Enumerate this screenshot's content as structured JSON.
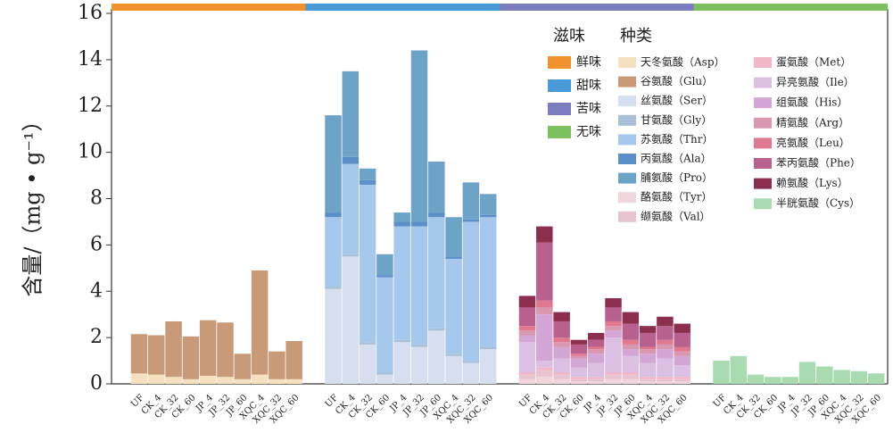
{
  "chart_data": {
    "type": "bar",
    "stacked": true,
    "ylabel": "含量/（mg • g⁻¹）",
    "ylim": [
      0,
      16
    ],
    "yticks": [
      0,
      2,
      4,
      6,
      8,
      10,
      12,
      14,
      16
    ],
    "categories": [
      "UF",
      "CK_4",
      "CK_32",
      "CK_60",
      "JP_4",
      "JP_32",
      "JP_60",
      "XQC_4",
      "XQC_32",
      "XQC_60"
    ],
    "legend_titles": [
      "滋味",
      "种类"
    ],
    "groups": [
      {
        "name": "鲜味",
        "color": "#f0922e",
        "series": [
          {
            "name": "天冬氨酸（Asp）",
            "color": "#f5e0c0",
            "values": [
              0.45,
              0.4,
              0.3,
              0.2,
              0.35,
              0.3,
              0.2,
              0.4,
              0.2,
              0.2
            ]
          },
          {
            "name": "谷氨酸（Glu）",
            "color": "#c99a78",
            "values": [
              1.7,
              1.7,
              2.4,
              1.85,
              2.4,
              2.35,
              1.1,
              4.5,
              1.2,
              1.65
            ]
          }
        ]
      },
      {
        "name": "甜味",
        "color": "#4a9ad8",
        "series": [
          {
            "name": "丝氨酸（Ser）",
            "color": "#d5dff0",
            "values": [
              4.1,
              5.5,
              1.7,
              0.4,
              1.8,
              1.6,
              2.3,
              1.2,
              0.9,
              1.5
            ]
          },
          {
            "name": "甘氨酸（Gly）",
            "color": "#a9c0d8",
            "values": [
              0.1,
              0.1,
              0.1,
              0.1,
              0.1,
              0.1,
              0.1,
              0.1,
              0.1,
              0.1
            ]
          },
          {
            "name": "苏氨酸（Thr）",
            "color": "#a6c8ec",
            "values": [
              3.0,
              3.9,
              6.8,
              4.1,
              4.9,
              5.1,
              4.8,
              4.1,
              6.0,
              5.6
            ]
          },
          {
            "name": "丙氨酸（Ala）",
            "color": "#5b8fc9",
            "values": [
              0.2,
              0.3,
              0.2,
              0.1,
              0.2,
              0.2,
              0.2,
              0.1,
              0.1,
              0.1
            ]
          },
          {
            "name": "脯氨酸（Pro）",
            "color": "#6ea3c8",
            "values": [
              4.2,
              3.7,
              0.5,
              0.9,
              0.4,
              7.4,
              2.2,
              1.7,
              1.6,
              0.9
            ]
          }
        ]
      },
      {
        "name": "苦味",
        "color": "#7c7cc0",
        "series": [
          {
            "name": "酪氨酸（Tyr）",
            "color": "#f0d6dc",
            "values": [
              0.2,
              0.3,
              0.2,
              0.1,
              0.1,
              0.2,
              0.2,
              0.1,
              0.1,
              0.1
            ]
          },
          {
            "name": "缬氨酸（Val）",
            "color": "#e8c4d0",
            "values": [
              0.2,
              0.3,
              0.2,
              0.1,
              0.1,
              0.2,
              0.2,
              0.1,
              0.1,
              0.1
            ]
          },
          {
            "name": "蛋氨酸（Met）",
            "color": "#f1b6c8",
            "values": [
              0.1,
              0.1,
              0.1,
              0.1,
              0.1,
              0.1,
              0.1,
              0.1,
              0.1,
              0.1
            ]
          },
          {
            "name": "异亮氨酸（Ile）",
            "color": "#dcc0e4",
            "values": [
              1.3,
              0.3,
              0.6,
              0.4,
              0.6,
              1.5,
              0.7,
              0.6,
              0.8,
              0.5
            ]
          },
          {
            "name": "组氨酸（His）",
            "color": "#d4a6d6",
            "values": [
              0.3,
              2.0,
              0.5,
              0.4,
              0.4,
              0.3,
              0.3,
              0.4,
              0.4,
              0.4
            ]
          },
          {
            "name": "精氨酸（Arg）",
            "color": "#d998b0",
            "values": [
              0.2,
              0.3,
              0.2,
              0.1,
              0.2,
              0.2,
              0.2,
              0.2,
              0.2,
              0.2
            ]
          },
          {
            "name": "亮氨酸（Leu）",
            "color": "#e07890",
            "values": [
              0.2,
              0.3,
              0.2,
              0.1,
              0.1,
              0.2,
              0.2,
              0.1,
              0.2,
              0.2
            ]
          },
          {
            "name": "苯丙氨酸（Phe）",
            "color": "#b8608e",
            "values": [
              0.8,
              2.5,
              0.7,
              0.4,
              0.3,
              0.6,
              0.7,
              0.6,
              0.6,
              0.6
            ]
          },
          {
            "name": "赖氨酸（Lys）",
            "color": "#8c2e4e",
            "values": [
              0.5,
              0.7,
              0.4,
              0.2,
              0.3,
              0.4,
              0.5,
              0.3,
              0.4,
              0.4
            ]
          }
        ]
      },
      {
        "name": "无味",
        "color": "#7cc060",
        "series": [
          {
            "name": "半胱氨酸（Cys）",
            "color": "#a8dcb0",
            "values": [
              1.0,
              1.2,
              0.4,
              0.3,
              0.3,
              0.95,
              0.75,
              0.6,
              0.55,
              0.45
            ]
          }
        ]
      }
    ]
  }
}
